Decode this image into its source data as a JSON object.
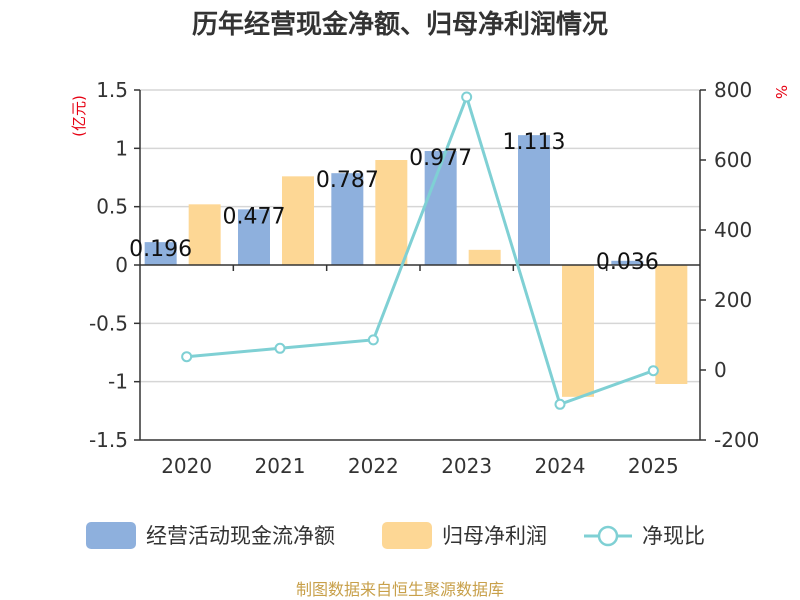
{
  "chart_data": {
    "type": "bar",
    "title": "历年经营现金净额、归母净利润情况",
    "categories": [
      "2020",
      "2021",
      "2022",
      "2023",
      "2024",
      "2025"
    ],
    "series": [
      {
        "name": "经营活动现金流净额",
        "axis": "left",
        "color": "#8eb0dd",
        "values": [
          0.196,
          0.477,
          0.787,
          0.977,
          1.113,
          0.036
        ],
        "labels": [
          "0.196",
          "0.477",
          "0.787",
          "0.977",
          "1.113",
          "0.036"
        ]
      },
      {
        "name": "归母净利润",
        "axis": "left",
        "color": "#fdd795",
        "values": [
          0.52,
          0.76,
          0.9,
          0.13,
          -1.13,
          -1.02
        ]
      },
      {
        "name": "净现比",
        "axis": "right",
        "type": "line",
        "color": "#7fd0d4",
        "values": [
          38,
          62,
          86,
          780,
          -98,
          -2
        ]
      }
    ],
    "y_left": {
      "unit": "(亿元)",
      "ylim": [
        -1.5,
        1.5
      ],
      "ticks": [
        1.5,
        1,
        0.5,
        0,
        -0.5,
        -1,
        -1.5
      ],
      "tick_labels": [
        "1.5",
        "1",
        "0.5",
        "0",
        "-0.5",
        "-1",
        "-1.5"
      ]
    },
    "y_right": {
      "unit": "%",
      "ylim": [
        -200,
        800
      ],
      "ticks": [
        800,
        600,
        400,
        200,
        0,
        -200
      ],
      "tick_labels": [
        "800",
        "600",
        "400",
        "200",
        "0",
        "-200"
      ]
    },
    "grid": true,
    "legend_position": "bottom"
  },
  "source": "制图数据来自恒生聚源数据库"
}
